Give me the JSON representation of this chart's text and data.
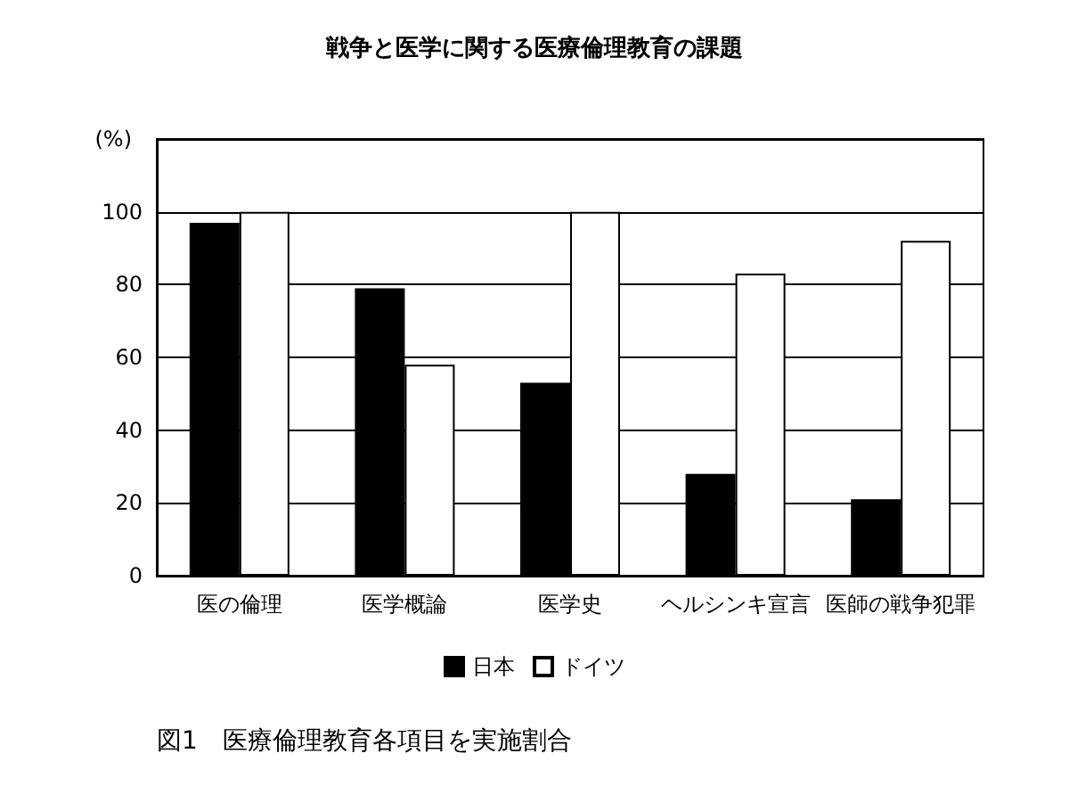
{
  "chart_data": {
    "type": "bar",
    "title": "戦争と医学に関する医療倫理教育の課題",
    "ylabel": "(%)",
    "categories": [
      "医の倫理",
      "医学概論",
      "医学史",
      "ヘルシンキ宣言",
      "医師の戦争犯罪"
    ],
    "series": [
      {
        "name": "日本",
        "color": "#000000",
        "values": [
          97,
          79,
          53,
          28,
          21
        ]
      },
      {
        "name": "ドイツ",
        "color": "#ffffff",
        "values": [
          100,
          58,
          100,
          83,
          92
        ]
      }
    ],
    "ylim": [
      0,
      120
    ],
    "yticks": [
      0,
      20,
      40,
      60,
      80,
      100,
      {
        "value": 120,
        "label": null
      }
    ],
    "grid": "y",
    "legend": "bottom",
    "annotations": [
      "図1　医療倫理教育各項目を実施割合"
    ]
  }
}
